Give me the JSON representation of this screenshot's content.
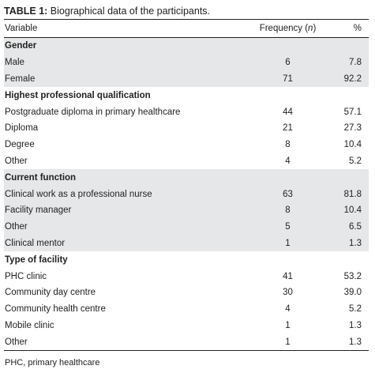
{
  "caption": {
    "label": "TABLE 1:",
    "text": " Biographical data of the participants."
  },
  "header": {
    "variable": "Variable",
    "frequency_prefix": "Frequency (",
    "frequency_n": "n",
    "frequency_suffix": ")",
    "percent": "%"
  },
  "groups": [
    {
      "title": "Gender",
      "rows": [
        {
          "label": "Male",
          "n": "6",
          "pct": "7.8"
        },
        {
          "label": "Female",
          "n": "71",
          "pct": "92.2"
        }
      ]
    },
    {
      "title": "Highest professional qualification",
      "rows": [
        {
          "label": "Postgraduate diploma in primary healthcare",
          "n": "44",
          "pct": "57.1"
        },
        {
          "label": "Diploma",
          "n": "21",
          "pct": "27.3"
        },
        {
          "label": "Degree",
          "n": "8",
          "pct": "10.4"
        },
        {
          "label": "Other",
          "n": "4",
          "pct": "5.2"
        }
      ]
    },
    {
      "title": "Current function",
      "rows": [
        {
          "label": "Clinical work as a professional nurse",
          "n": "63",
          "pct": "81.8"
        },
        {
          "label": "Facility manager",
          "n": "8",
          "pct": "10.4"
        },
        {
          "label": "Other",
          "n": "5",
          "pct": "6.5"
        },
        {
          "label": "Clinical mentor",
          "n": "1",
          "pct": "1.3"
        }
      ]
    },
    {
      "title": "Type of facility",
      "rows": [
        {
          "label": "PHC clinic",
          "n": "41",
          "pct": "53.2"
        },
        {
          "label": "Community day centre",
          "n": "30",
          "pct": "39.0"
        },
        {
          "label": "Community health centre",
          "n": "4",
          "pct": "5.2"
        },
        {
          "label": "Mobile clinic",
          "n": "1",
          "pct": "1.3"
        },
        {
          "label": "Other",
          "n": "1",
          "pct": "1.3"
        }
      ]
    }
  ],
  "footnote": "PHC, primary healthcare"
}
